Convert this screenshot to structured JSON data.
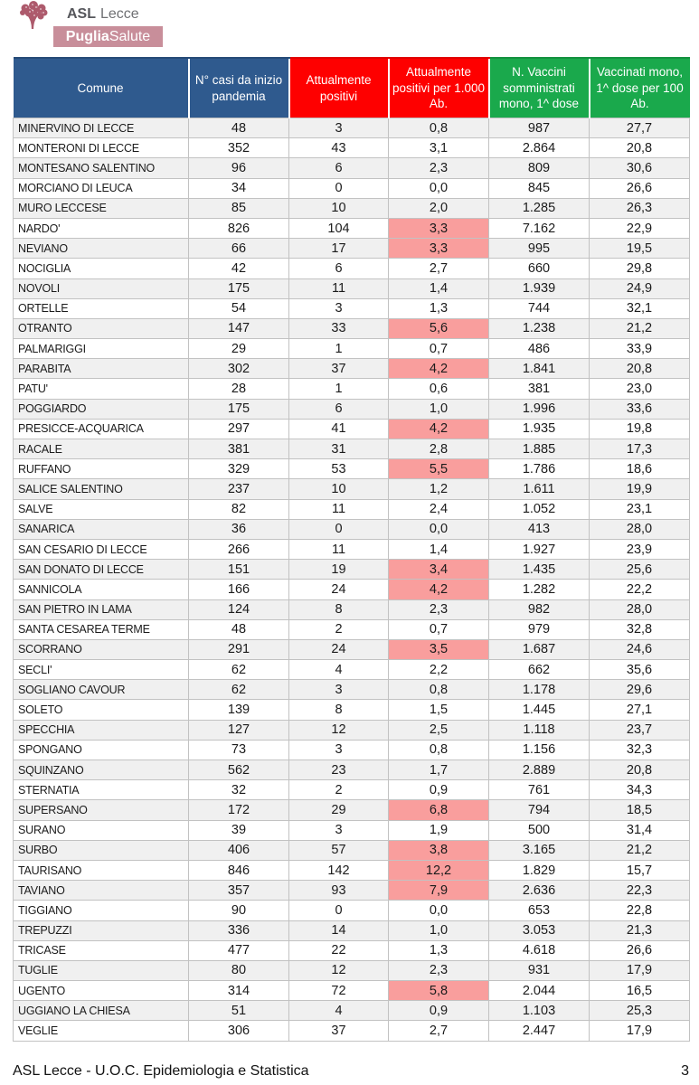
{
  "logo": {
    "org_bold": "ASL",
    "org_name": "Lecce",
    "brand_bold": "Puglia",
    "brand_rest": "Salute"
  },
  "colors": {
    "header_blue": "#2F5A8E",
    "header_red": "#FE0000",
    "header_green": "#1AA94C",
    "highlight_pink": "#F99E9D",
    "row_alt_gray": "#F0F0F0",
    "grid_line": "#C2C2C2",
    "banner_rose": "#C88E9A",
    "tree_rose": "#AD5A6C"
  },
  "table": {
    "columns": [
      {
        "label": "Comune",
        "theme": "blue"
      },
      {
        "label": "N° casi da inizio pandemia",
        "theme": "blue"
      },
      {
        "label": "Attualmente positivi",
        "theme": "red"
      },
      {
        "label": "Attualmente positivi per 1.000 Ab.",
        "theme": "red"
      },
      {
        "label": "N. Vaccini somministrati mono, 1^ dose",
        "theme": "green"
      },
      {
        "label": "Vaccinati mono, 1^ dose per 100 Ab.",
        "theme": "green"
      }
    ],
    "rows": [
      {
        "comune": "MINERVINO DI LECCE",
        "casi": "48",
        "positivi": "3",
        "positivi_per_1000": "0,8",
        "vaccini": "987",
        "vaccinati_per_100": "27,7",
        "highlight": false
      },
      {
        "comune": "MONTERONI DI LECCE",
        "casi": "352",
        "positivi": "43",
        "positivi_per_1000": "3,1",
        "vaccini": "2.864",
        "vaccinati_per_100": "20,8",
        "highlight": false
      },
      {
        "comune": "MONTESANO SALENTINO",
        "casi": "96",
        "positivi": "6",
        "positivi_per_1000": "2,3",
        "vaccini": "809",
        "vaccinati_per_100": "30,6",
        "highlight": false
      },
      {
        "comune": "MORCIANO DI LEUCA",
        "casi": "34",
        "positivi": "0",
        "positivi_per_1000": "0,0",
        "vaccini": "845",
        "vaccinati_per_100": "26,6",
        "highlight": false
      },
      {
        "comune": "MURO LECCESE",
        "casi": "85",
        "positivi": "10",
        "positivi_per_1000": "2,0",
        "vaccini": "1.285",
        "vaccinati_per_100": "26,3",
        "highlight": false
      },
      {
        "comune": "NARDO'",
        "casi": "826",
        "positivi": "104",
        "positivi_per_1000": "3,3",
        "vaccini": "7.162",
        "vaccinati_per_100": "22,9",
        "highlight": true
      },
      {
        "comune": "NEVIANO",
        "casi": "66",
        "positivi": "17",
        "positivi_per_1000": "3,3",
        "vaccini": "995",
        "vaccinati_per_100": "19,5",
        "highlight": true
      },
      {
        "comune": "NOCIGLIA",
        "casi": "42",
        "positivi": "6",
        "positivi_per_1000": "2,7",
        "vaccini": "660",
        "vaccinati_per_100": "29,8",
        "highlight": false
      },
      {
        "comune": "NOVOLI",
        "casi": "175",
        "positivi": "11",
        "positivi_per_1000": "1,4",
        "vaccini": "1.939",
        "vaccinati_per_100": "24,9",
        "highlight": false
      },
      {
        "comune": "ORTELLE",
        "casi": "54",
        "positivi": "3",
        "positivi_per_1000": "1,3",
        "vaccini": "744",
        "vaccinati_per_100": "32,1",
        "highlight": false
      },
      {
        "comune": "OTRANTO",
        "casi": "147",
        "positivi": "33",
        "positivi_per_1000": "5,6",
        "vaccini": "1.238",
        "vaccinati_per_100": "21,2",
        "highlight": true
      },
      {
        "comune": "PALMARIGGI",
        "casi": "29",
        "positivi": "1",
        "positivi_per_1000": "0,7",
        "vaccini": "486",
        "vaccinati_per_100": "33,9",
        "highlight": false
      },
      {
        "comune": "PARABITA",
        "casi": "302",
        "positivi": "37",
        "positivi_per_1000": "4,2",
        "vaccini": "1.841",
        "vaccinati_per_100": "20,8",
        "highlight": true
      },
      {
        "comune": "PATU'",
        "casi": "28",
        "positivi": "1",
        "positivi_per_1000": "0,6",
        "vaccini": "381",
        "vaccinati_per_100": "23,0",
        "highlight": false
      },
      {
        "comune": "POGGIARDO",
        "casi": "175",
        "positivi": "6",
        "positivi_per_1000": "1,0",
        "vaccini": "1.996",
        "vaccinati_per_100": "33,6",
        "highlight": false
      },
      {
        "comune": "PRESICCE-ACQUARICA",
        "casi": "297",
        "positivi": "41",
        "positivi_per_1000": "4,2",
        "vaccini": "1.935",
        "vaccinati_per_100": "19,8",
        "highlight": true
      },
      {
        "comune": "RACALE",
        "casi": "381",
        "positivi": "31",
        "positivi_per_1000": "2,8",
        "vaccini": "1.885",
        "vaccinati_per_100": "17,3",
        "highlight": false
      },
      {
        "comune": "RUFFANO",
        "casi": "329",
        "positivi": "53",
        "positivi_per_1000": "5,5",
        "vaccini": "1.786",
        "vaccinati_per_100": "18,6",
        "highlight": true
      },
      {
        "comune": "SALICE SALENTINO",
        "casi": "237",
        "positivi": "10",
        "positivi_per_1000": "1,2",
        "vaccini": "1.611",
        "vaccinati_per_100": "19,9",
        "highlight": false
      },
      {
        "comune": "SALVE",
        "casi": "82",
        "positivi": "11",
        "positivi_per_1000": "2,4",
        "vaccini": "1.052",
        "vaccinati_per_100": "23,1",
        "highlight": false
      },
      {
        "comune": "SANARICA",
        "casi": "36",
        "positivi": "0",
        "positivi_per_1000": "0,0",
        "vaccini": "413",
        "vaccinati_per_100": "28,0",
        "highlight": false
      },
      {
        "comune": "SAN CESARIO DI LECCE",
        "casi": "266",
        "positivi": "11",
        "positivi_per_1000": "1,4",
        "vaccini": "1.927",
        "vaccinati_per_100": "23,9",
        "highlight": false
      },
      {
        "comune": "SAN DONATO DI LECCE",
        "casi": "151",
        "positivi": "19",
        "positivi_per_1000": "3,4",
        "vaccini": "1.435",
        "vaccinati_per_100": "25,6",
        "highlight": true
      },
      {
        "comune": "SANNICOLA",
        "casi": "166",
        "positivi": "24",
        "positivi_per_1000": "4,2",
        "vaccini": "1.282",
        "vaccinati_per_100": "22,2",
        "highlight": true
      },
      {
        "comune": "SAN PIETRO IN LAMA",
        "casi": "124",
        "positivi": "8",
        "positivi_per_1000": "2,3",
        "vaccini": "982",
        "vaccinati_per_100": "28,0",
        "highlight": false
      },
      {
        "comune": "SANTA CESAREA TERME",
        "casi": "48",
        "positivi": "2",
        "positivi_per_1000": "0,7",
        "vaccini": "979",
        "vaccinati_per_100": "32,8",
        "highlight": false
      },
      {
        "comune": "SCORRANO",
        "casi": "291",
        "positivi": "24",
        "positivi_per_1000": "3,5",
        "vaccini": "1.687",
        "vaccinati_per_100": "24,6",
        "highlight": true
      },
      {
        "comune": "SECLI'",
        "casi": "62",
        "positivi": "4",
        "positivi_per_1000": "2,2",
        "vaccini": "662",
        "vaccinati_per_100": "35,6",
        "highlight": false
      },
      {
        "comune": "SOGLIANO CAVOUR",
        "casi": "62",
        "positivi": "3",
        "positivi_per_1000": "0,8",
        "vaccini": "1.178",
        "vaccinati_per_100": "29,6",
        "highlight": false
      },
      {
        "comune": "SOLETO",
        "casi": "139",
        "positivi": "8",
        "positivi_per_1000": "1,5",
        "vaccini": "1.445",
        "vaccinati_per_100": "27,1",
        "highlight": false
      },
      {
        "comune": "SPECCHIA",
        "casi": "127",
        "positivi": "12",
        "positivi_per_1000": "2,5",
        "vaccini": "1.118",
        "vaccinati_per_100": "23,7",
        "highlight": false
      },
      {
        "comune": "SPONGANO",
        "casi": "73",
        "positivi": "3",
        "positivi_per_1000": "0,8",
        "vaccini": "1.156",
        "vaccinati_per_100": "32,3",
        "highlight": false
      },
      {
        "comune": "SQUINZANO",
        "casi": "562",
        "positivi": "23",
        "positivi_per_1000": "1,7",
        "vaccini": "2.889",
        "vaccinati_per_100": "20,8",
        "highlight": false
      },
      {
        "comune": "STERNATIA",
        "casi": "32",
        "positivi": "2",
        "positivi_per_1000": "0,9",
        "vaccini": "761",
        "vaccinati_per_100": "34,3",
        "highlight": false
      },
      {
        "comune": "SUPERSANO",
        "casi": "172",
        "positivi": "29",
        "positivi_per_1000": "6,8",
        "vaccini": "794",
        "vaccinati_per_100": "18,5",
        "highlight": true
      },
      {
        "comune": "SURANO",
        "casi": "39",
        "positivi": "3",
        "positivi_per_1000": "1,9",
        "vaccini": "500",
        "vaccinati_per_100": "31,4",
        "highlight": false
      },
      {
        "comune": "SURBO",
        "casi": "406",
        "positivi": "57",
        "positivi_per_1000": "3,8",
        "vaccini": "3.165",
        "vaccinati_per_100": "21,2",
        "highlight": true
      },
      {
        "comune": "TAURISANO",
        "casi": "846",
        "positivi": "142",
        "positivi_per_1000": "12,2",
        "vaccini": "1.829",
        "vaccinati_per_100": "15,7",
        "highlight": true
      },
      {
        "comune": "TAVIANO",
        "casi": "357",
        "positivi": "93",
        "positivi_per_1000": "7,9",
        "vaccini": "2.636",
        "vaccinati_per_100": "22,3",
        "highlight": true
      },
      {
        "comune": "TIGGIANO",
        "casi": "90",
        "positivi": "0",
        "positivi_per_1000": "0,0",
        "vaccini": "653",
        "vaccinati_per_100": "22,8",
        "highlight": false
      },
      {
        "comune": "TREPUZZI",
        "casi": "336",
        "positivi": "14",
        "positivi_per_1000": "1,0",
        "vaccini": "3.053",
        "vaccinati_per_100": "21,3",
        "highlight": false
      },
      {
        "comune": "TRICASE",
        "casi": "477",
        "positivi": "22",
        "positivi_per_1000": "1,3",
        "vaccini": "4.618",
        "vaccinati_per_100": "26,6",
        "highlight": false
      },
      {
        "comune": "TUGLIE",
        "casi": "80",
        "positivi": "12",
        "positivi_per_1000": "2,3",
        "vaccini": "931",
        "vaccinati_per_100": "17,9",
        "highlight": false
      },
      {
        "comune": "UGENTO",
        "casi": "314",
        "positivi": "72",
        "positivi_per_1000": "5,8",
        "vaccini": "2.044",
        "vaccinati_per_100": "16,5",
        "highlight": true
      },
      {
        "comune": "UGGIANO LA CHIESA",
        "casi": "51",
        "positivi": "4",
        "positivi_per_1000": "0,9",
        "vaccini": "1.103",
        "vaccinati_per_100": "25,3",
        "highlight": false
      },
      {
        "comune": "VEGLIE",
        "casi": "306",
        "positivi": "37",
        "positivi_per_1000": "2,7",
        "vaccini": "2.447",
        "vaccinati_per_100": "17,9",
        "highlight": false
      }
    ]
  },
  "footer": {
    "left": "ASL Lecce - U.O.C. Epidemiologia e Statistica",
    "page_number": "3"
  }
}
